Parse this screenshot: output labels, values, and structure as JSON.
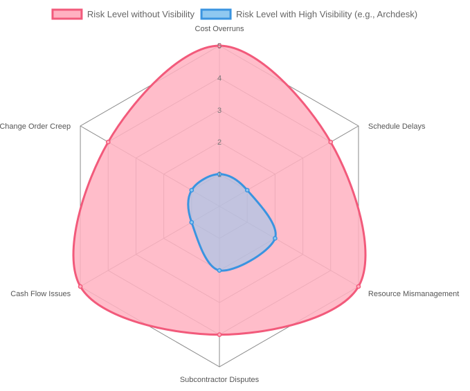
{
  "chart_data": {
    "type": "radar",
    "categories": [
      "Cost Overruns",
      "Schedule Delays",
      "Resource Mismanagement",
      "Subcontractor Disputes",
      "Cash Flow Issues",
      "Change Order Creep"
    ],
    "series": [
      {
        "name": "Risk Level without Visibility",
        "values": [
          5,
          4,
          5,
          4,
          5,
          4
        ],
        "stroke": "#f25a7b",
        "fill": "#ffb1c1"
      },
      {
        "name": "Risk Level with High Visibility (e.g., Archdesk)",
        "values": [
          1,
          1,
          2,
          2,
          1,
          1
        ],
        "stroke": "#3a94e0",
        "fill": "#8fc8f0"
      }
    ],
    "r_ticks": [
      "1",
      "2",
      "3",
      "4",
      "5"
    ],
    "r_range": [
      0,
      5
    ],
    "grid": true,
    "legend_position": "top",
    "title": ""
  }
}
